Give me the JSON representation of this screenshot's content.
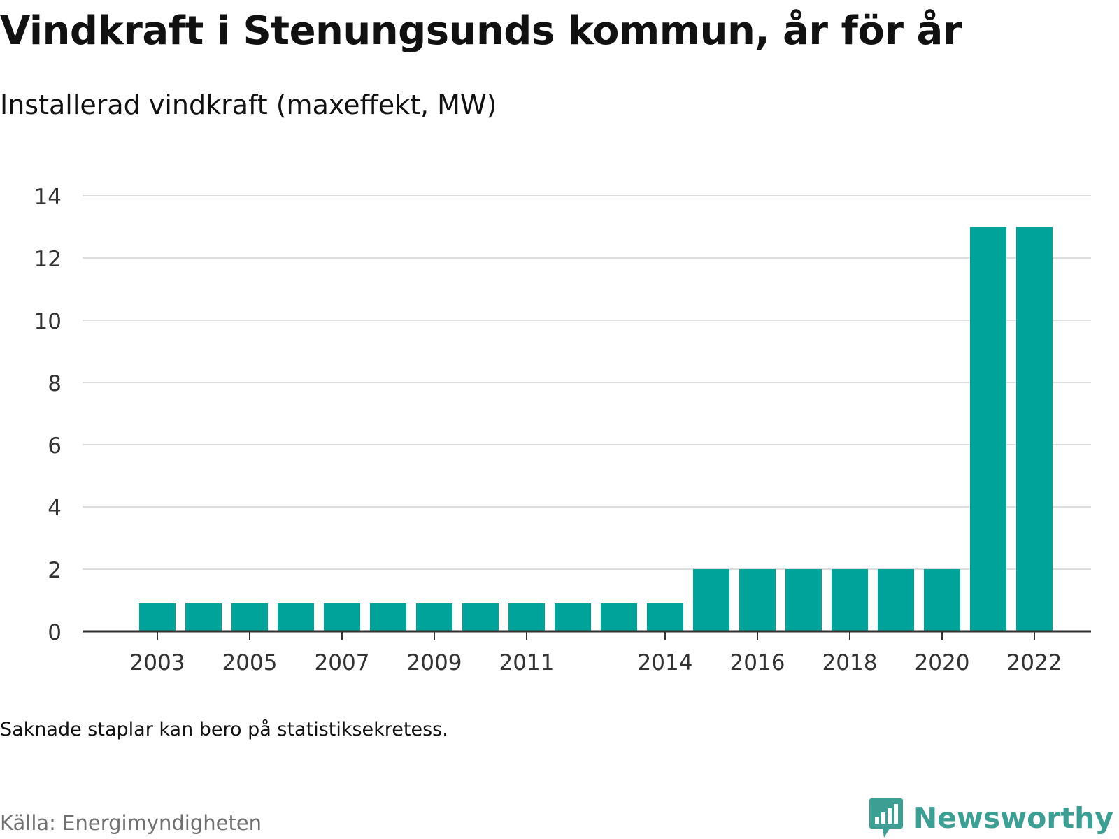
{
  "title": "Vindkraft i Stenungsunds kommun, år för år",
  "subtitle": "Installerad vindkraft (maxeffekt, MW)",
  "footnote": "Saknade staplar kan bero på statistiksekretess.",
  "source": "Källa: Energimyndigheten",
  "brand": "Newsworthy",
  "colors": {
    "bar": "#00a39a",
    "grid": "#dddddd",
    "axis": "#333333",
    "brand": "#3d9e94"
  },
  "chart_data": {
    "type": "bar",
    "categories": [
      "2003",
      "2004",
      "2005",
      "2006",
      "2007",
      "2008",
      "2009",
      "2010",
      "2011",
      "2012",
      "2013",
      "2014",
      "2015",
      "2016",
      "2017",
      "2018",
      "2019",
      "2020",
      "2021",
      "2022"
    ],
    "values": [
      0.9,
      0.9,
      0.9,
      0.9,
      0.9,
      0.9,
      0.9,
      0.9,
      0.9,
      0.9,
      0.9,
      0.9,
      2,
      2,
      2,
      2,
      2,
      2,
      13,
      13
    ],
    "x_tick_labels": [
      "2003",
      "2005",
      "2007",
      "2009",
      "2011",
      "2014",
      "2016",
      "2018",
      "2020",
      "2022"
    ],
    "y_ticks": [
      0,
      2,
      4,
      6,
      8,
      10,
      12,
      14
    ],
    "ylim": [
      0,
      14
    ],
    "xlabel": "",
    "ylabel": "",
    "grid": true,
    "legend": "none"
  }
}
